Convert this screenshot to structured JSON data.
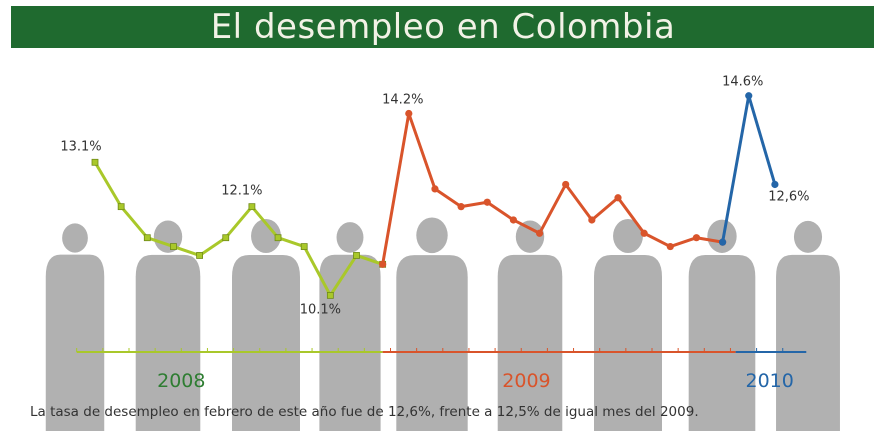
{
  "title": "El desempleo en Colombia",
  "caption": "La tasa de desempleo en febrero de este año fue de 12,6%, frente a 12,5% de igual mes del 2009.",
  "colors": {
    "banner": "#1f6a2f",
    "s2008": "#a9c82a",
    "s2009": "#d9542b",
    "s2010": "#2466a8",
    "silhouette": "#a8a8a8",
    "year2008": "#2e7d32",
    "year2009": "#d9542b",
    "year2010": "#2466a8"
  },
  "chart_data": {
    "type": "line",
    "title": "El desempleo en Colombia",
    "xlabel": "",
    "ylabel": "",
    "grid": false,
    "legend": "none",
    "year_labels": [
      "2008",
      "2009",
      "2010"
    ],
    "ylim": [
      9.5,
      15
    ],
    "series": [
      {
        "year": "2008",
        "color": "#a9c82a",
        "x": [
          1,
          2,
          3,
          4,
          5,
          6,
          7,
          8,
          9,
          10,
          11,
          12
        ],
        "values": [
          13.1,
          12.1,
          11.4,
          11.2,
          11.0,
          11.4,
          12.1,
          11.4,
          11.2,
          10.1,
          11.0,
          10.8
        ]
      },
      {
        "year": "2009",
        "color": "#d9542b",
        "x": [
          12,
          13,
          14,
          15,
          16,
          17,
          18,
          19,
          20,
          21,
          22,
          23,
          24,
          25
        ],
        "values": [
          10.8,
          14.2,
          12.5,
          12.1,
          12.2,
          11.8,
          11.5,
          12.6,
          11.8,
          12.3,
          11.5,
          11.2,
          11.4,
          11.3
        ]
      },
      {
        "year": "2010",
        "color": "#2466a8",
        "x": [
          25,
          26,
          27
        ],
        "values": [
          11.3,
          14.6,
          12.6
        ]
      }
    ],
    "data_labels": [
      {
        "text": "13.1%",
        "x": 1,
        "y": 13.1
      },
      {
        "text": "12.1%",
        "x": 7,
        "y": 12.1
      },
      {
        "text": "10.1%",
        "x": 10,
        "y": 10.1
      },
      {
        "text": "14.2%",
        "x": 13,
        "y": 14.2
      },
      {
        "text": "14.6%",
        "x": 26,
        "y": 14.6
      },
      {
        "text": "12,6%",
        "x": 27,
        "y": 12.6
      }
    ]
  }
}
